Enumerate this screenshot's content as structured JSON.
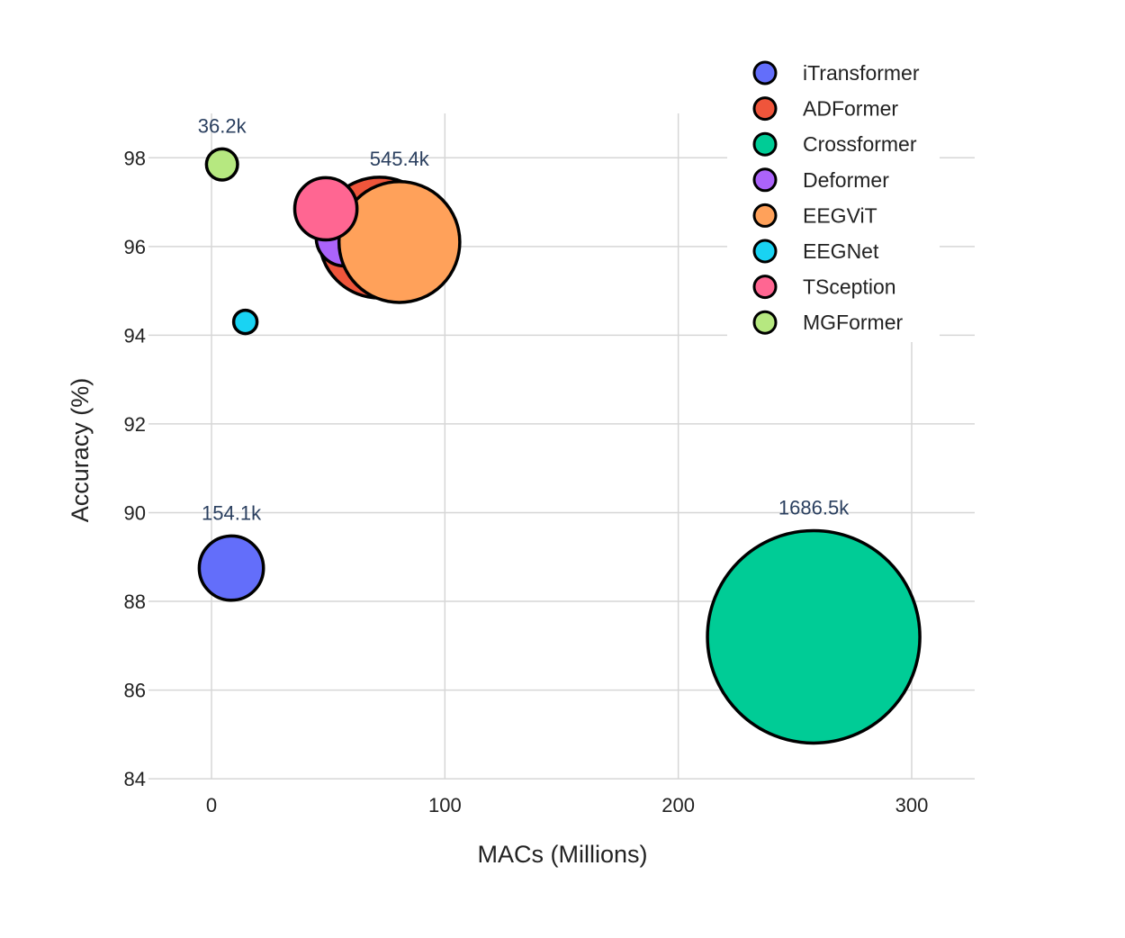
{
  "chart_data": {
    "type": "scatter",
    "subtype": "bubble",
    "xlabel": "MACs (Millions)",
    "ylabel": "Accuracy (%)",
    "xlim": [
      -27,
      327
    ],
    "ylim": [
      83.8,
      99.0
    ],
    "x_ticks": [
      0,
      100,
      200,
      300
    ],
    "y_ticks": [
      84,
      86,
      88,
      90,
      92,
      94,
      96,
      98
    ],
    "grid": true,
    "legend_position": "top-right",
    "size_variable": "Params",
    "series": [
      {
        "name": "iTransformer",
        "x": 8.5,
        "y": 88.75,
        "params_k": 154.1,
        "label": "154.1k",
        "color": "#636efa"
      },
      {
        "name": "ADFormer",
        "x": 72,
        "y": 96.2,
        "params_k": 545.4,
        "label": "",
        "color": "#ef553b"
      },
      {
        "name": "Crossformer",
        "x": 258,
        "y": 87.2,
        "params_k": 1686.5,
        "label": "1686.5k",
        "color": "#00cc96"
      },
      {
        "name": "Deformer",
        "x": 57,
        "y": 96.2,
        "params_k": 120,
        "label": "",
        "color": "#ab63fa"
      },
      {
        "name": "EEGViT",
        "x": 80.5,
        "y": 96.1,
        "params_k": 545.4,
        "label": "545.4k",
        "color": "#ffa15a"
      },
      {
        "name": "EEGNet",
        "x": 14.5,
        "y": 94.3,
        "params_k": 3.0,
        "label": "",
        "color": "#19d3f3"
      },
      {
        "name": "TSception",
        "x": 49,
        "y": 96.85,
        "params_k": 145,
        "label": "",
        "color": "#ff6692"
      },
      {
        "name": "MGFormer",
        "x": 4.5,
        "y": 97.85,
        "params_k": 36.2,
        "label": "36.2k",
        "color": "#b6e880"
      }
    ]
  }
}
